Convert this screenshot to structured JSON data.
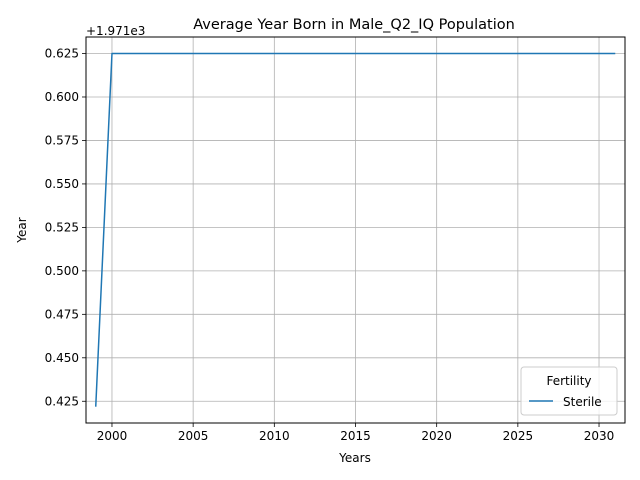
{
  "chart_data": {
    "type": "line",
    "title": "Average Year Born in Male_Q2_IQ Population",
    "xlabel": "Years",
    "ylabel": "Year",
    "y_offset_label": "+1.971e3",
    "xlim": [
      1998.4,
      2031.6
    ],
    "ylim": [
      0.4125,
      0.6345
    ],
    "x_ticks": [
      2000,
      2005,
      2010,
      2015,
      2020,
      2025,
      2030
    ],
    "x_tick_labels": [
      "2000",
      "2005",
      "2010",
      "2015",
      "2020",
      "2025",
      "2030"
    ],
    "y_ticks": [
      0.425,
      0.45,
      0.475,
      0.5,
      0.525,
      0.55,
      0.575,
      0.6,
      0.625
    ],
    "y_tick_labels": [
      "0.425",
      "0.450",
      "0.475",
      "0.500",
      "0.525",
      "0.550",
      "0.575",
      "0.600",
      "0.625"
    ],
    "grid": true,
    "legend": {
      "title": "Fertility",
      "placement": "lower-right"
    },
    "series": [
      {
        "name": "Sterile",
        "color": "#1f77b4",
        "x": [
          1999,
          2000,
          2001,
          2002,
          2003,
          2004,
          2005,
          2006,
          2007,
          2008,
          2009,
          2010,
          2011,
          2012,
          2013,
          2014,
          2015,
          2016,
          2017,
          2018,
          2019,
          2020,
          2021,
          2022,
          2023,
          2024,
          2025,
          2026,
          2027,
          2028,
          2029,
          2030,
          2031
        ],
        "y": [
          0.4219,
          0.625,
          0.625,
          0.625,
          0.625,
          0.625,
          0.625,
          0.625,
          0.625,
          0.625,
          0.625,
          0.625,
          0.625,
          0.625,
          0.625,
          0.625,
          0.625,
          0.625,
          0.625,
          0.625,
          0.625,
          0.625,
          0.625,
          0.625,
          0.625,
          0.625,
          0.625,
          0.625,
          0.625,
          0.625,
          0.625,
          0.625,
          0.625
        ]
      }
    ]
  }
}
